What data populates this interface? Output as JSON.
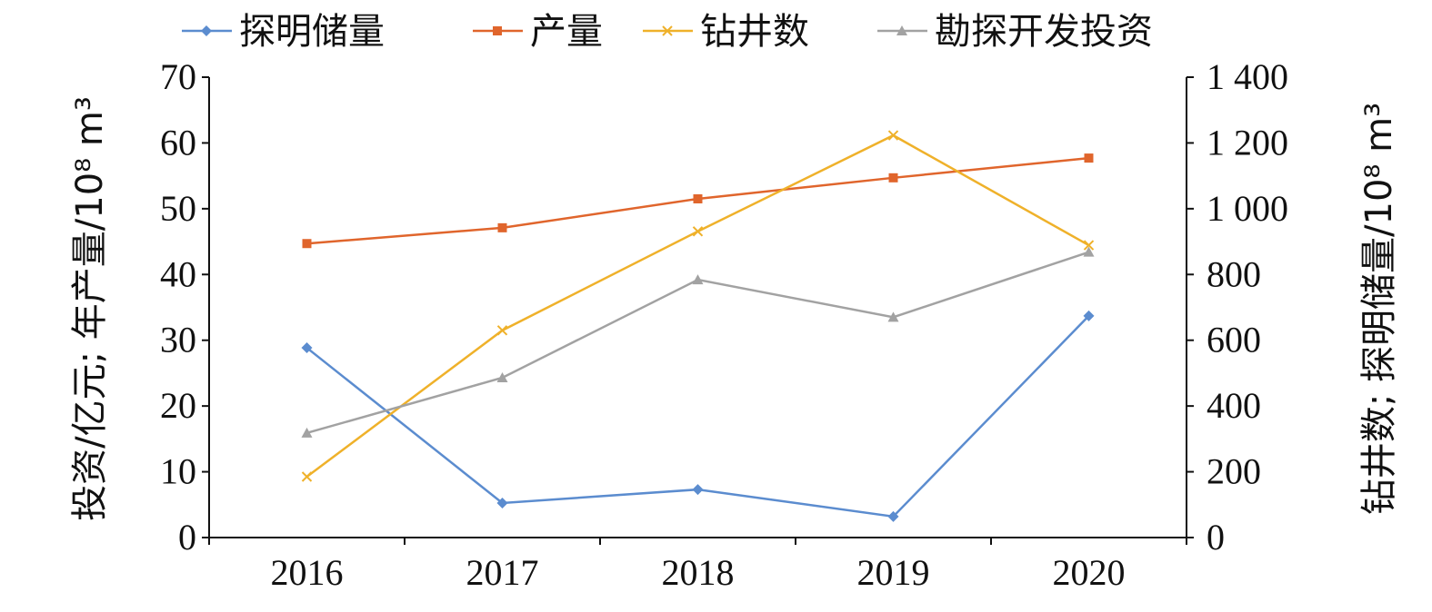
{
  "chart_data": {
    "type": "line",
    "title": "",
    "categories": [
      "2016",
      "2017",
      "2018",
      "2019",
      "2020"
    ],
    "y_left": {
      "label": "投资/亿元; 年产量/10⁸ m³",
      "ylim": [
        0,
        70
      ],
      "ticks": [
        "0",
        "10",
        "20",
        "30",
        "40",
        "50",
        "60",
        "70"
      ],
      "tick_values": [
        0,
        10,
        20,
        30,
        40,
        50,
        60,
        70
      ]
    },
    "y_right": {
      "label": "钻井数; 探明储量/10⁸ m³",
      "ylim": [
        0,
        1400
      ],
      "ticks": [
        "0",
        "200",
        "400",
        "600",
        "800",
        "1 000",
        "1 200",
        "1 400"
      ],
      "tick_values": [
        0,
        200,
        400,
        600,
        800,
        1000,
        1200,
        1400
      ]
    },
    "legend_position": "top",
    "grid": false,
    "series": [
      {
        "name": "探明储量",
        "axis": "right",
        "marker": "diamond",
        "color": "#5b8ccf",
        "values": [
          577,
          105,
          146,
          64,
          674
        ]
      },
      {
        "name": "产量",
        "axis": "left",
        "marker": "square",
        "color": "#e0652c",
        "values": [
          44.7,
          47.1,
          51.5,
          54.7,
          57.7
        ]
      },
      {
        "name": "钻井数",
        "axis": "right",
        "marker": "x",
        "color": "#efb12a",
        "values": [
          185,
          630,
          931,
          1223,
          889
        ]
      },
      {
        "name": "勘探开发投资",
        "axis": "left",
        "marker": "triangle",
        "color": "#a2a2a2",
        "values": [
          15.9,
          24.3,
          39.2,
          33.5,
          43.4
        ]
      }
    ]
  }
}
